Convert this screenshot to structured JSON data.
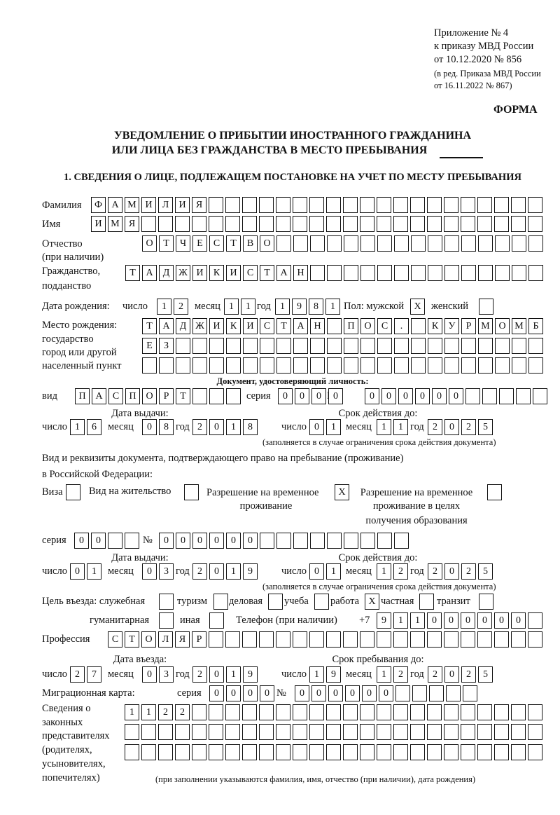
{
  "header": {
    "appendix": [
      "Приложение № 4",
      "к приказу МВД России",
      "от 10.12.2020 № 856",
      "(в ред. Приказа МВД России",
      "от 16.11.2022 № 867)"
    ],
    "form_label": "ФОРМА",
    "title": [
      "УВЕДОМЛЕНИЕ О ПРИБЫТИИ ИНОСТРАННОГО ГРАЖДАНИНА",
      "ИЛИ ЛИЦА БЕЗ ГРАЖДАНСТВА В МЕСТО ПРЕБЫВАНИЯ"
    ],
    "section1": "1. СВЕДЕНИЯ О ЛИЦЕ, ПОДЛЕЖАЩЕМ ПОСТАНОВКЕ НА УЧЕТ ПО МЕСТУ ПРЕБЫВАНИЯ"
  },
  "labels": {
    "surname": "Фамилия",
    "name": "Имя",
    "patronymic": [
      "Отчество",
      "(при наличии)"
    ],
    "citizenship": [
      "Гражданство,",
      "подданство"
    ],
    "birth_date": "Дата рождения:",
    "day": "число",
    "month": "месяц",
    "year": "год",
    "sex": "Пол: мужской",
    "female": "женский",
    "birth_place": [
      "Место рождения:",
      "государство",
      "город или другой",
      "населенный пункт"
    ],
    "id_doc": "Документ, удостоверяющий личность:",
    "kind": "вид",
    "series": "серия",
    "number": "№",
    "issue_date": "Дата выдачи:",
    "valid_until": "Срок действия до:",
    "validity_note": "(заполняется в случае ограничения срока действия документа)",
    "residence_doc": [
      "Вид и реквизиты документа, подтверждающего право на пребывание (проживание)",
      "в Российской Федерации:"
    ],
    "visa": "Виза",
    "residence_permit": "Вид на жительство",
    "temp_residence": [
      "Разрешение на временное",
      "проживание"
    ],
    "temp_residence_edu": [
      "Разрешение на временное",
      "проживание в целях",
      "получения образования"
    ],
    "purpose": "Цель въезда: служебная",
    "tourism": "туризм",
    "business": "деловая",
    "study": "учеба",
    "work": "работа",
    "private": "частная",
    "transit": "транзит",
    "humanitarian": "гуманитарная",
    "other": "иная",
    "phone": "Телефон (при наличии)",
    "phone_prefix": "+7",
    "profession": "Профессия",
    "entry_date": "Дата въезда:",
    "stay_until": "Срок пребывания до:",
    "migration_card": "Миграционная карта:",
    "representatives": [
      "Сведения о",
      "законных",
      "представителях",
      "(родителях,",
      "усыновителях,",
      "попечителях)"
    ],
    "representatives_note": "(при заполнении указываются фамилия, имя, отчество (при наличии), дата рождения)"
  },
  "fields": {
    "surname": [
      "Ф",
      "А",
      "М",
      "И",
      "Л",
      "И",
      "Я"
    ],
    "name": [
      "И",
      "М",
      "Я"
    ],
    "patronymic": [
      "О",
      "Т",
      "Ч",
      "Е",
      "С",
      "Т",
      "В",
      "О"
    ],
    "citizenship": [
      "Т",
      "А",
      "Д",
      "Ж",
      "И",
      "К",
      "И",
      "С",
      "Т",
      "А",
      "Н"
    ],
    "birth_day": [
      "1",
      "2"
    ],
    "birth_month": [
      "1",
      "1"
    ],
    "birth_year": [
      "1",
      "9",
      "8",
      "1"
    ],
    "sex_male": [
      "X"
    ],
    "sex_female": [
      ""
    ],
    "birth_place_1": [
      "Т",
      "А",
      "Д",
      "Ж",
      "И",
      "К",
      "И",
      "С",
      "Т",
      "А",
      "Н",
      "",
      "П",
      "О",
      "С",
      ".",
      "",
      "К",
      "У",
      "Р",
      "М",
      "О",
      "М",
      "Б"
    ],
    "birth_place_2": [
      "Е",
      "З"
    ],
    "birth_place_3": [],
    "doc_kind": [
      "П",
      "А",
      "С",
      "П",
      "О",
      "Р",
      "Т"
    ],
    "doc_series": [
      "0",
      "0",
      "0",
      "0"
    ],
    "doc_number": [
      "0",
      "0",
      "0",
      "0",
      "0",
      "0"
    ],
    "doc_issue_day": [
      "1",
      "6"
    ],
    "doc_issue_month": [
      "0",
      "8"
    ],
    "doc_issue_year": [
      "2",
      "0",
      "1",
      "8"
    ],
    "doc_valid_day": [
      "0",
      "1"
    ],
    "doc_valid_month": [
      "1",
      "1"
    ],
    "doc_valid_year": [
      "2",
      "0",
      "2",
      "5"
    ],
    "res_visa": [
      ""
    ],
    "res_permit": [
      ""
    ],
    "res_temp": [
      "X"
    ],
    "res_temp_edu": [
      ""
    ],
    "res_series": [
      "0",
      "0"
    ],
    "res_number": [
      "0",
      "0",
      "0",
      "0",
      "0",
      "0"
    ],
    "res_issue_day": [
      "0",
      "1"
    ],
    "res_issue_month": [
      "0",
      "3"
    ],
    "res_issue_year": [
      "2",
      "0",
      "1",
      "9"
    ],
    "res_valid_day": [
      "0",
      "1"
    ],
    "res_valid_month": [
      "1",
      "2"
    ],
    "res_valid_year": [
      "2",
      "0",
      "2",
      "5"
    ],
    "purpose_service": [
      ""
    ],
    "purpose_tourism": [
      ""
    ],
    "purpose_business": [
      ""
    ],
    "purpose_study": [
      ""
    ],
    "purpose_work": [
      "X"
    ],
    "purpose_private": [
      ""
    ],
    "purpose_transit": [
      ""
    ],
    "purpose_humanitarian": [
      ""
    ],
    "purpose_other": [
      ""
    ],
    "phone": [
      "9",
      "1",
      "1",
      "0",
      "0",
      "0",
      "0",
      "0",
      "0"
    ],
    "profession": [
      "С",
      "Т",
      "О",
      "Л",
      "Я",
      "Р"
    ],
    "entry_day": [
      "2",
      "7"
    ],
    "entry_month": [
      "0",
      "3"
    ],
    "entry_year": [
      "2",
      "0",
      "1",
      "9"
    ],
    "stay_day": [
      "1",
      "9"
    ],
    "stay_month": [
      "1",
      "2"
    ],
    "stay_year": [
      "2",
      "0",
      "2",
      "5"
    ],
    "mig_series": [
      "0",
      "0",
      "0",
      "0"
    ],
    "mig_number": [
      "0",
      "0",
      "0",
      "0",
      "0",
      "0"
    ],
    "rep_1": [
      "1",
      "1",
      "2",
      "2"
    ],
    "rep_2": [],
    "rep_3": []
  }
}
